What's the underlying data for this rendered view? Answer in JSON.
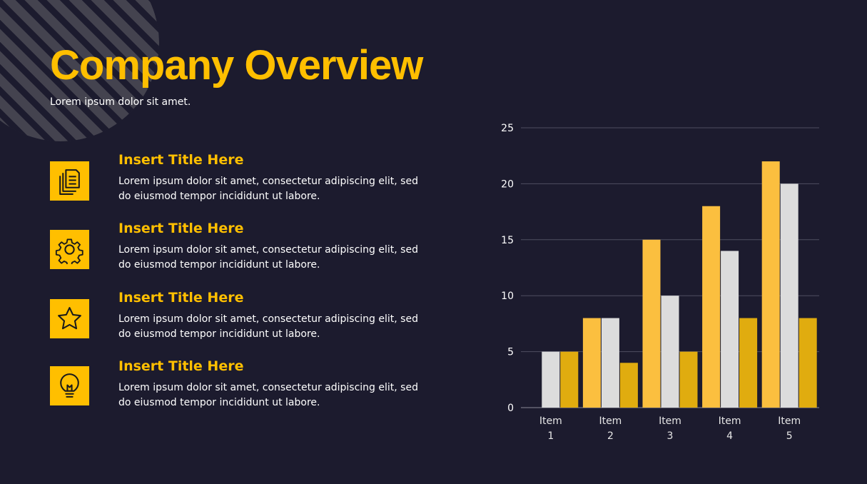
{
  "slide": {
    "title": "Company Overview",
    "subtitle": "Lorem ipsum dolor sit amet."
  },
  "items": [
    {
      "title": "Insert Title Here",
      "text": "Lorem ipsum dolor sit amet, consectetur adipiscing elit, sed do eiusmod tempor incididunt ut labore.",
      "icon": "documents-icon"
    },
    {
      "title": "Insert Title Here",
      "text": "Lorem ipsum dolor sit amet, consectetur adipiscing elit, sed do eiusmod tempor incididunt ut labore.",
      "icon": "gear-icon"
    },
    {
      "title": "Insert Title Here",
      "text": "Lorem ipsum dolor sit amet, consectetur adipiscing elit, sed do eiusmod tempor incididunt ut labore.",
      "icon": "star-icon"
    },
    {
      "title": "Insert Title Here",
      "text": "Lorem ipsum dolor sit amet, consectetur adipiscing elit, sed do eiusmod tempor incididunt ut labore.",
      "icon": "lightbulb-icon"
    }
  ],
  "colors": {
    "background": "#1c1b2e",
    "accent": "#ffbf00",
    "decoration": "#4a4a52"
  },
  "chart_data": {
    "type": "bar",
    "categories": [
      [
        "Item",
        "1"
      ],
      [
        "Item",
        "2"
      ],
      [
        "Item",
        "3"
      ],
      [
        "Item",
        "4"
      ],
      [
        "Item",
        "5"
      ]
    ],
    "series": [
      {
        "values": [
          0,
          8,
          15,
          18,
          22
        ],
        "color": "#fbbf3f"
      },
      {
        "values": [
          5,
          8,
          10,
          14,
          20
        ],
        "color": "#dcdcdc"
      },
      {
        "values": [
          5,
          4,
          5,
          8,
          8
        ],
        "color": "#e0ac0f"
      }
    ],
    "ylim": [
      0,
      25
    ],
    "yticks": [
      0,
      5,
      10,
      15,
      20,
      25
    ],
    "grid": true,
    "legend": "none"
  }
}
